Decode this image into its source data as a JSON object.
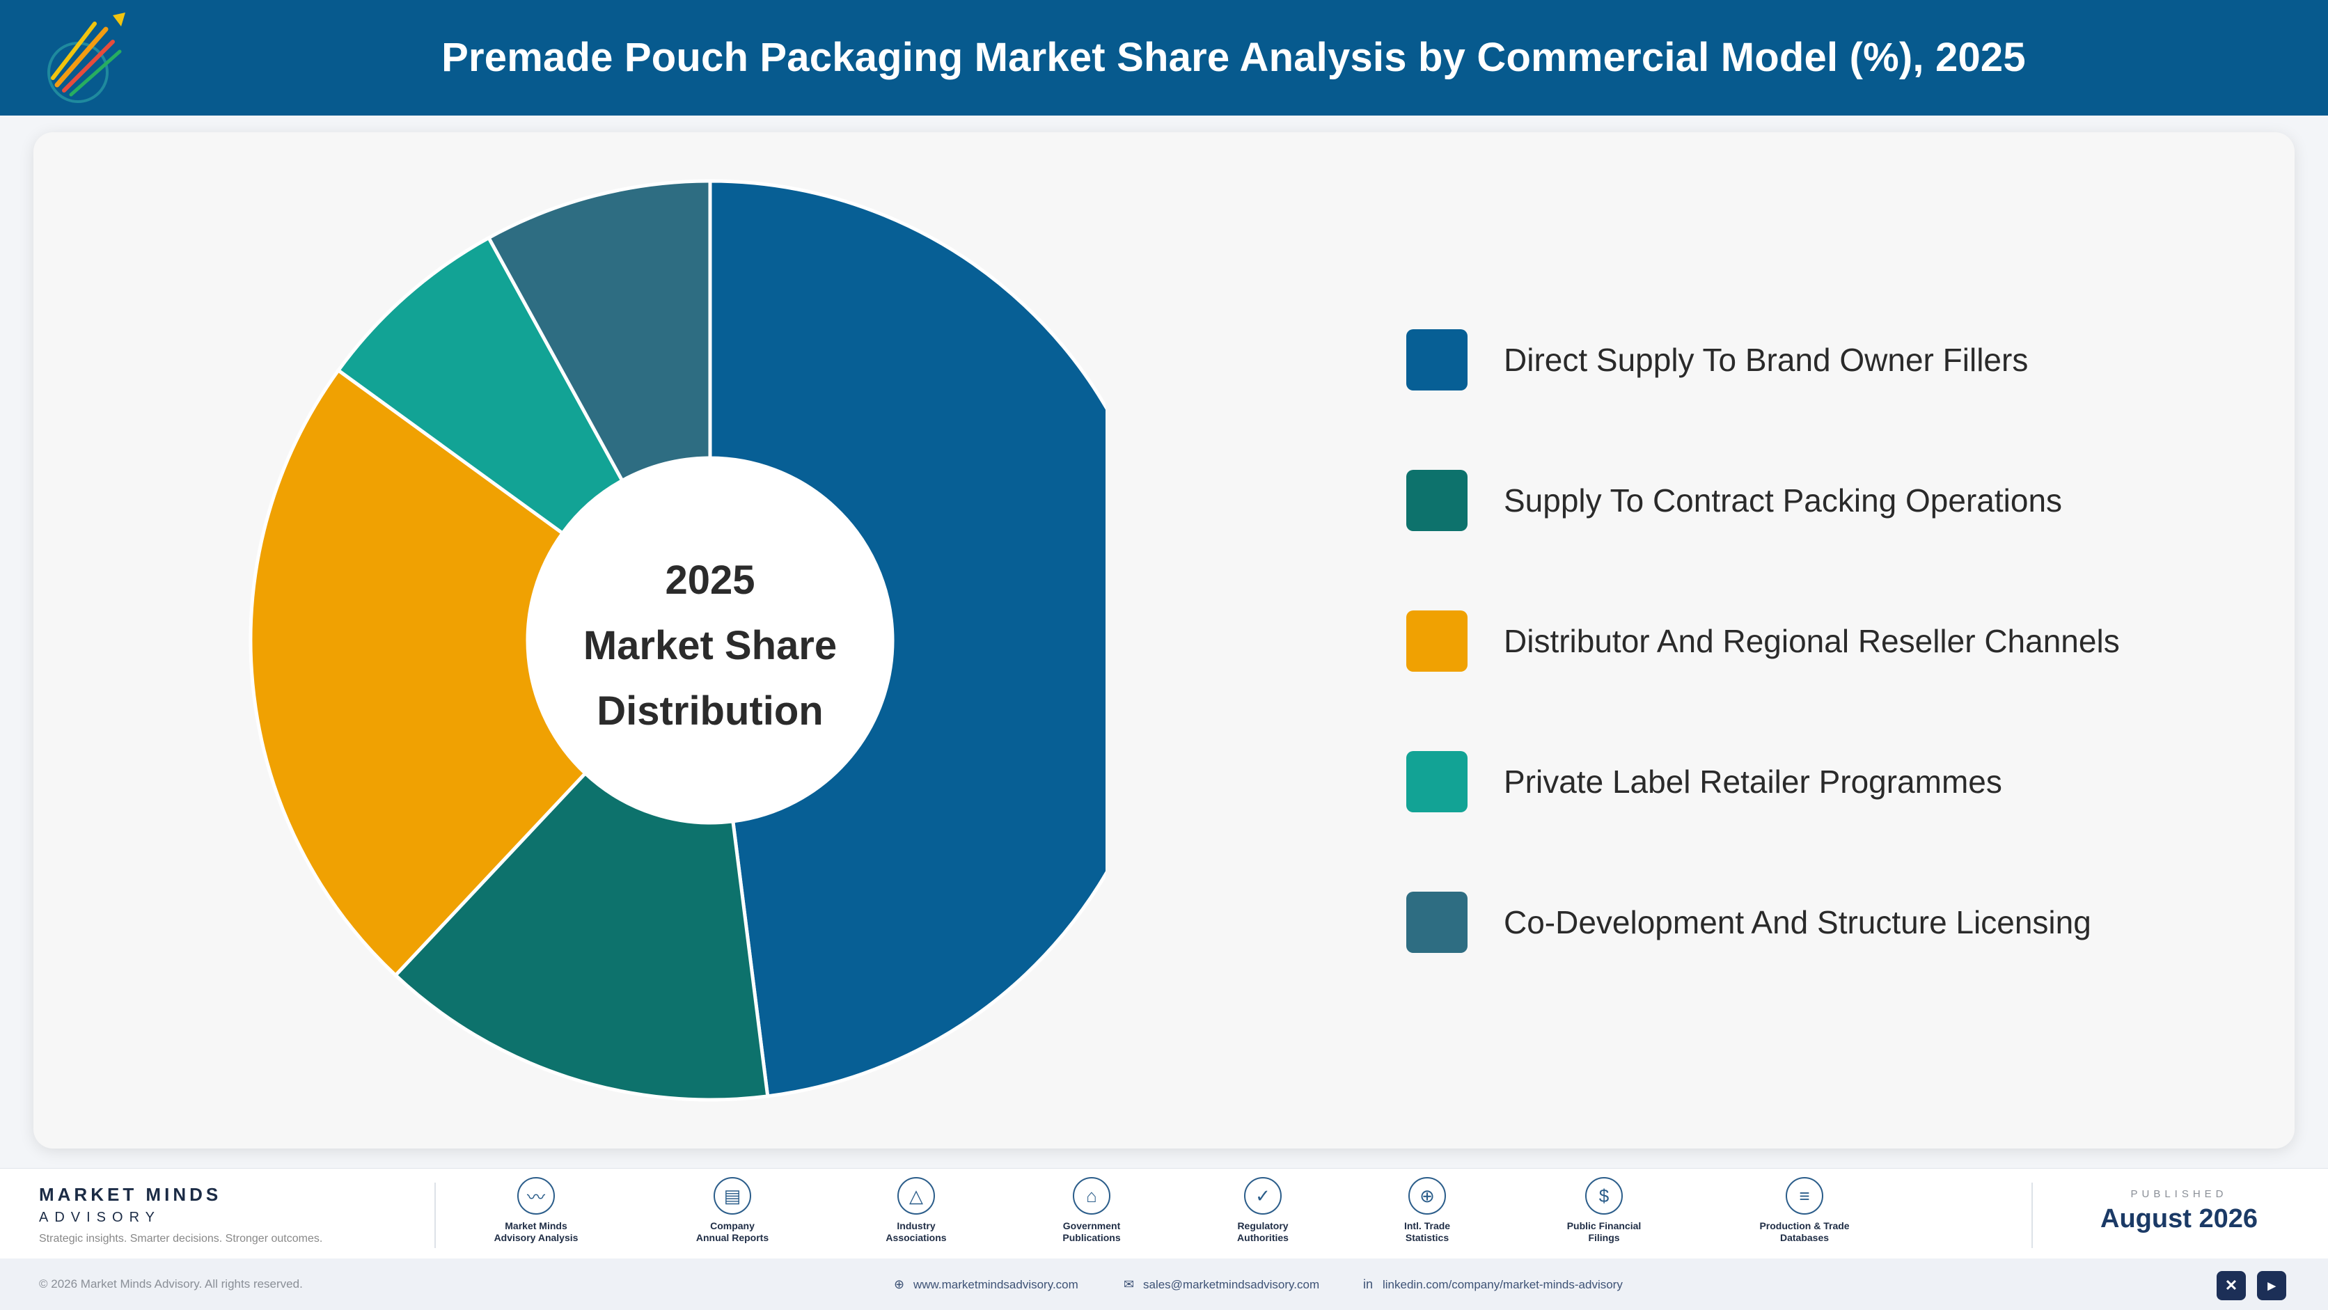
{
  "header": {
    "title": "Premade Pouch Packaging Market Share Analysis by Commercial Model (%), 2025",
    "logo_icon": "rocket-chart-logo-icon"
  },
  "chart_data": {
    "type": "pie",
    "donut": true,
    "title": "Premade Pouch Packaging Market Share Analysis by Commercial Model (%), 2025",
    "center_label": [
      "2025",
      "Market Share",
      "Distribution"
    ],
    "legend_position": "right",
    "categories": [
      "Direct Supply To Brand Owner Fillers",
      "Supply To Contract Packing Operations",
      "Distributor And Regional Reseller Channels",
      "Private Label Retailer Programmes",
      "Co-Development And Structure Licensing"
    ],
    "values": [
      48,
      14,
      23,
      7,
      8
    ],
    "colors": [
      "#075f95",
      "#0d726c",
      "#f0a102",
      "#12a395",
      "#2e6d82"
    ]
  },
  "footer": {
    "brand_name": "MARKET MINDS",
    "brand_sub": "ADVISORY",
    "brand_tag": "Strategic insights. Smarter decisions. Stronger outcomes.",
    "sources": [
      {
        "icon": "trend-chart-icon",
        "glyph": "〰",
        "label": [
          "Market Minds",
          "Advisory Analysis"
        ]
      },
      {
        "icon": "document-icon",
        "glyph": "▤",
        "label": [
          "Company",
          "Annual Reports"
        ]
      },
      {
        "icon": "network-icon",
        "glyph": "△",
        "label": [
          "Industry",
          "Associations"
        ]
      },
      {
        "icon": "government-building-icon",
        "glyph": "⌂",
        "label": [
          "Government",
          "Publications"
        ]
      },
      {
        "icon": "shield-check-icon",
        "glyph": "✓",
        "label": [
          "Regulatory",
          "Authorities"
        ]
      },
      {
        "icon": "globe-icon",
        "glyph": "⊕",
        "label": [
          "Intl. Trade",
          "Statistics"
        ]
      },
      {
        "icon": "coin-icon",
        "glyph": "$",
        "label": [
          "Public Financial",
          "Filings"
        ]
      },
      {
        "icon": "database-icon",
        "glyph": "≡",
        "label": [
          "Production & Trade",
          "Databases"
        ]
      }
    ],
    "published_label": "PUBLISHED",
    "published_date": "August 2026"
  },
  "bottombar": {
    "copyright": "© 2026 Market Minds Advisory. All rights reserved.",
    "website": "www.marketmindsadvisory.com",
    "email": "sales@marketmindsadvisory.com",
    "linkedin": "linkedin.com/company/market-minds-advisory",
    "social": [
      {
        "icon": "x-icon",
        "glyph": "✕"
      },
      {
        "icon": "youtube-icon",
        "glyph": "▸"
      }
    ]
  }
}
